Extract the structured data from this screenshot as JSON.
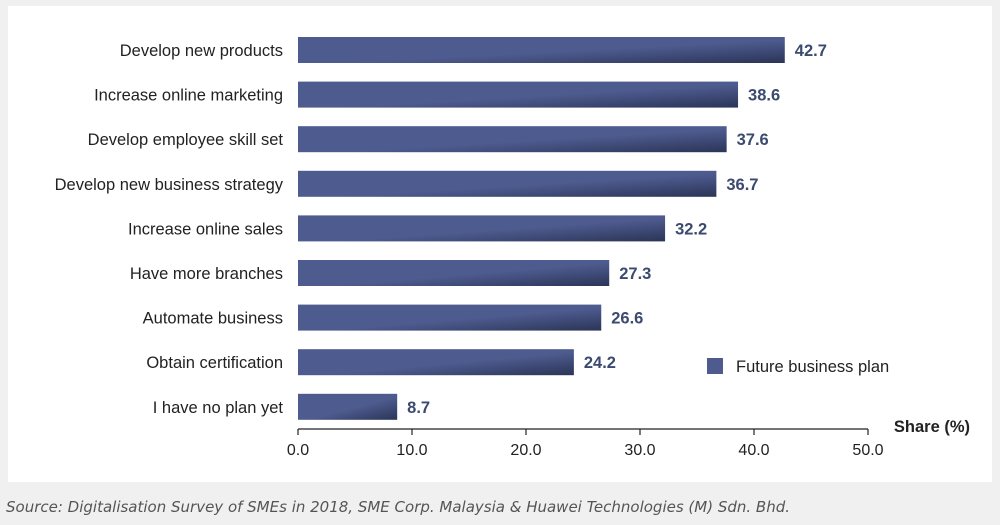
{
  "chart_data": {
    "type": "bar",
    "orientation": "horizontal",
    "categories": [
      "Develop new products",
      "Increase online marketing",
      "Develop employee skill set",
      "Develop new business strategy",
      "Increase online sales",
      "Have more branches",
      "Automate business",
      "Obtain certification",
      "I have no plan yet"
    ],
    "series": [
      {
        "name": "Future business plan",
        "values": [
          42.7,
          38.6,
          37.6,
          36.7,
          32.2,
          27.3,
          26.6,
          24.2,
          8.7
        ],
        "color": "#4e5b8f"
      }
    ],
    "data_labels": [
      "42.7",
      "38.6",
      "37.6",
      "36.7",
      "32.2",
      "27.3",
      "26.6",
      "24.2",
      "8.7"
    ],
    "xlabel": "Share (%)",
    "xlim": [
      0,
      50
    ],
    "xticks": [
      "0.0",
      "10.0",
      "20.0",
      "30.0",
      "40.0",
      "50.0"
    ],
    "grid": false,
    "legend_position": "bottom-right",
    "colors": {
      "bar": "#4e5b8f",
      "bar_dark": "#2b3557",
      "value_label": "#3b4a6f"
    }
  },
  "source_note": "Source: Digitalisation Survey of SMEs in 2018, SME Corp. Malaysia & Huawei Technologies (M) Sdn. Bhd."
}
